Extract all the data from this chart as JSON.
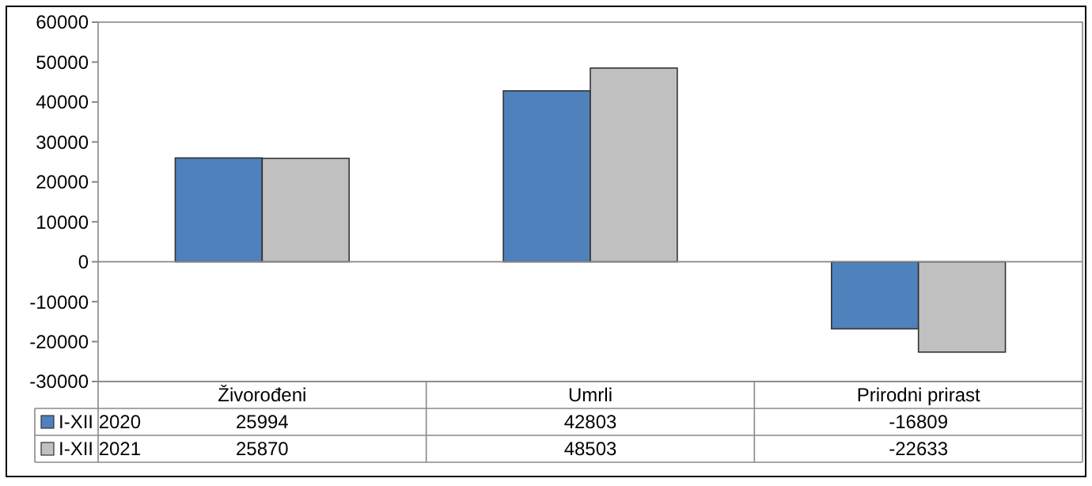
{
  "chart_data": {
    "type": "bar",
    "categories": [
      "Živorođeni",
      "Umrli",
      "Prirodni prirast"
    ],
    "series": [
      {
        "name": "I-XII 2020",
        "color": "#4f81bd",
        "values": [
          25994,
          42803,
          -16809
        ]
      },
      {
        "name": "I-XII 2021",
        "color": "#c0c0c0",
        "values": [
          25870,
          48503,
          -22633
        ]
      }
    ],
    "ylim": [
      -30000,
      60000
    ],
    "yticks": [
      -30000,
      -20000,
      -10000,
      0,
      10000,
      20000,
      30000,
      40000,
      50000,
      60000
    ],
    "data_labels": true,
    "legend": "bottom"
  }
}
